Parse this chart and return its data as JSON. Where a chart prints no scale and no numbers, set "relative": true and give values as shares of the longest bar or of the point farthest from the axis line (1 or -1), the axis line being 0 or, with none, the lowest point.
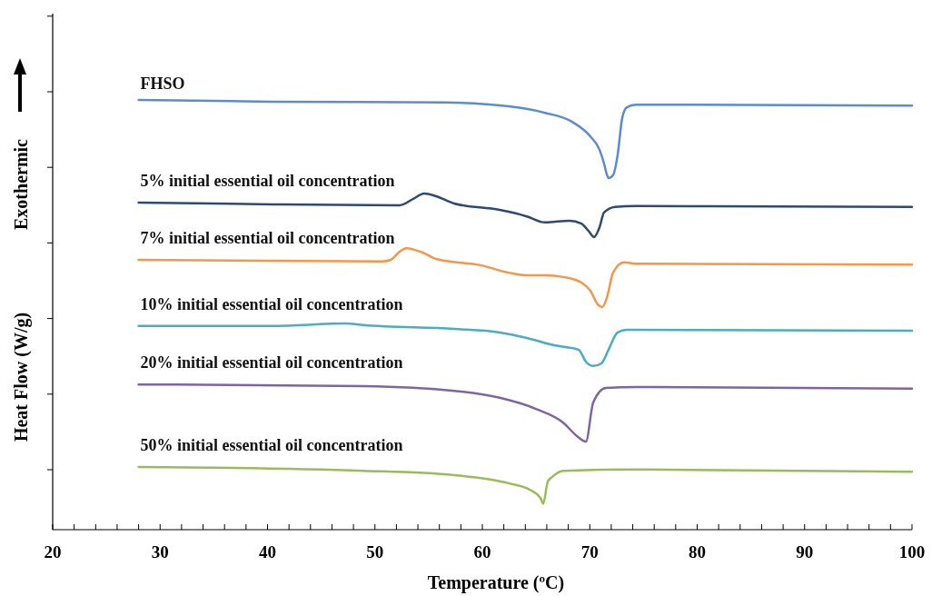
{
  "chart_data": {
    "type": "line",
    "relative": true,
    "xlabel": "Temperature (ºC)",
    "ylabel": "Heat Flow (W/g)",
    "annotations": [
      "Exothermic"
    ],
    "xlim": [
      20,
      100
    ],
    "xticks": [
      20,
      {
        "value": 22,
        "label": null
      },
      {
        "value": 24,
        "label": null
      },
      {
        "value": 26,
        "label": null
      },
      {
        "value": 28,
        "label": null
      },
      30,
      {
        "value": 32,
        "label": null
      },
      {
        "value": 34,
        "label": null
      },
      {
        "value": 36,
        "label": null
      },
      {
        "value": 38,
        "label": null
      },
      40,
      {
        "value": 42,
        "label": null
      },
      {
        "value": 44,
        "label": null
      },
      {
        "value": 46,
        "label": null
      },
      {
        "value": 48,
        "label": null
      },
      50,
      {
        "value": 52,
        "label": null
      },
      {
        "value": 54,
        "label": null
      },
      {
        "value": 56,
        "label": null
      },
      {
        "value": 58,
        "label": null
      },
      60,
      {
        "value": 62,
        "label": null
      },
      {
        "value": 64,
        "label": null
      },
      {
        "value": 66,
        "label": null
      },
      {
        "value": 68,
        "label": null
      },
      70,
      {
        "value": 72,
        "label": null
      },
      {
        "value": 74,
        "label": null
      },
      {
        "value": 76,
        "label": null
      },
      {
        "value": 78,
        "label": null
      },
      80,
      {
        "value": 82,
        "label": null
      },
      {
        "value": 84,
        "label": null
      },
      {
        "value": 86,
        "label": null
      },
      {
        "value": 88,
        "label": null
      },
      90,
      {
        "value": 92,
        "label": null
      },
      {
        "value": 94,
        "label": null
      },
      {
        "value": 96,
        "label": null
      },
      {
        "value": 98,
        "label": null
      },
      100
    ],
    "grid": false,
    "marker": "none",
    "line_style": "solid",
    "series": [
      {
        "name": "FHSO",
        "color": "#5b8bd0",
        "x": [
          28,
          40.47,
          56.53,
          62.45,
          65.84,
          68.37,
          70.06,
          70.91,
          71.33,
          71.58,
          71.75,
          72.17,
          72.6,
          73.02,
          73.45,
          74.29,
          78.52,
          100
        ],
        "values": [
          1,
          0.996,
          0.994,
          0.985,
          0.97,
          0.949,
          0.915,
          0.884,
          0.852,
          0.827,
          0.818,
          0.825,
          0.873,
          0.958,
          0.983,
          0.989,
          0.989,
          0.987
        ]
      },
      {
        "name": "5% initial essential oil concentration",
        "color": "#2e4a70",
        "x": [
          28,
          40.47,
          52.3,
          53.57,
          54.59,
          55.69,
          57.38,
          61.61,
          64.14,
          65.84,
          68.12,
          69.22,
          69.89,
          70.4,
          70.91,
          71.33,
          72.35,
          74.29,
          100
        ],
        "values": [
          0.761,
          0.757,
          0.755,
          0.77,
          0.782,
          0.776,
          0.759,
          0.744,
          0.729,
          0.715,
          0.719,
          0.712,
          0.695,
          0.681,
          0.704,
          0.738,
          0.751,
          0.753,
          0.751
        ]
      },
      {
        "name": "7% initial essential oil concentration",
        "color": "#f79646",
        "x": [
          28,
          50.61,
          51.46,
          52.3,
          52.9,
          54.42,
          55.69,
          59.92,
          62.45,
          64.14,
          65.84,
          67.53,
          69.22,
          70.06,
          70.74,
          71.16,
          71.58,
          72.17,
          73.19,
          74.29,
          100
        ],
        "values": [
          0.628,
          0.624,
          0.628,
          0.647,
          0.655,
          0.645,
          0.63,
          0.615,
          0.598,
          0.592,
          0.592,
          0.588,
          0.575,
          0.556,
          0.524,
          0.518,
          0.539,
          0.598,
          0.622,
          0.619,
          0.617
        ]
      },
      {
        "name": "10% initial essential oil concentration",
        "color": "#4bacc6",
        "x": [
          28,
          40.47,
          47.23,
          48.92,
          57.38,
          61.61,
          64.14,
          66.68,
          68.96,
          69.64,
          70.32,
          71.08,
          71.75,
          72.6,
          73.45,
          100
        ],
        "values": [
          0.474,
          0.474,
          0.48,
          0.476,
          0.467,
          0.459,
          0.446,
          0.429,
          0.419,
          0.391,
          0.381,
          0.387,
          0.419,
          0.459,
          0.465,
          0.463
        ]
      },
      {
        "name": "20% initial essential oil concentration",
        "color": "#8064a2",
        "x": [
          28,
          48.92,
          57.38,
          61.61,
          64.99,
          67.53,
          68.8,
          69.64,
          70.32,
          71.5,
          74.29,
          100
        ],
        "values": [
          0.338,
          0.334,
          0.323,
          0.307,
          0.281,
          0.249,
          0.218,
          0.205,
          0.296,
          0.33,
          0.332,
          0.328
        ]
      },
      {
        "name": "50% initial essential oil concentration",
        "color": "#9bbb59",
        "x": [
          28,
          48.92,
          57.38,
          62.45,
          64.57,
          65.41,
          65.67,
          66.09,
          66.51,
          67.53,
          74.29,
          100
        ],
        "values": [
          0.146,
          0.137,
          0.127,
          0.108,
          0.091,
          0.074,
          0.061,
          0.112,
          0.123,
          0.137,
          0.14,
          0.135
        ]
      }
    ]
  }
}
